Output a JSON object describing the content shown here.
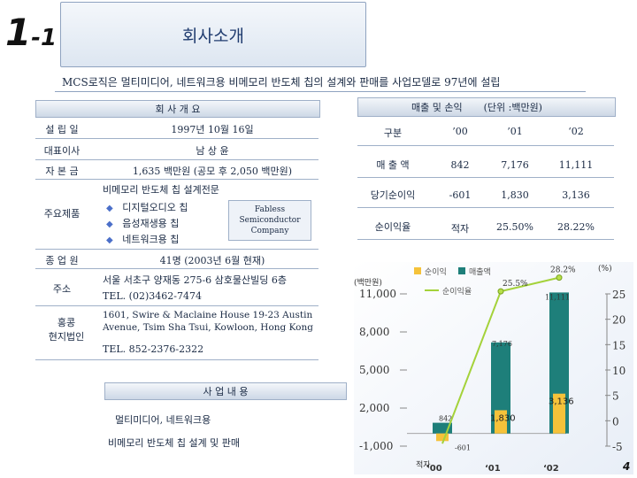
{
  "slide_number": {
    "main": "1",
    "sub": "-1"
  },
  "title": "회사소개",
  "subtitle": "MCS로직은 멀티미디어, 네트워크용 비메모리 반도체 칩의 설계와 판매를 사업모델로 97년에 설립",
  "overview": {
    "header": "회 사 개 요",
    "rows": [
      {
        "label": "설 립 일",
        "value": "1997년 10월 16일"
      },
      {
        "label": "대표이사",
        "value": "남 상 윤"
      },
      {
        "label": "자 본 금",
        "value": "1,635 백만원 (공모 후 2,050 백만원)"
      }
    ],
    "products": {
      "label": "주요제품",
      "heading": "비메모리 반도체 칩 설계전문",
      "items": [
        "디지털오디오 칩",
        "음성재생용 칩",
        "네트워크용 칩"
      ],
      "badge_lines": [
        "Fabless",
        "Semiconductor",
        "Company"
      ]
    },
    "employees": {
      "label": "종 업 원",
      "value": "41명 (2003년 6월 현재)"
    },
    "address": {
      "label": "주소",
      "line1": "서울 서초구 양재동 275-6 삼호물산빌딩 6층",
      "line2": "TEL. (02)3462-7474"
    },
    "hk": {
      "label_line1": "홍콩",
      "label_line2": "현지법인",
      "line1": "1601, Swire & Maclaine House 19-23 Austin",
      "line2": "Avenue, Tsim Sha Tsui, Kowloon, Hong Kong",
      "line3": "TEL. 852-2376-2322"
    }
  },
  "business": {
    "header": "사 업 내 용",
    "line1": "멀티미디어, 네트워크용",
    "line2": "비메모리 반도체 칩 설계 및 판매"
  },
  "finance": {
    "header": "매출 및 손익",
    "unit": "(단위 :백만원)",
    "columns": [
      "구분",
      "’00",
      "’01",
      "‘02"
    ],
    "rows": [
      {
        "label": "매 출 액",
        "values": [
          "842",
          "7,176",
          "11,111"
        ]
      },
      {
        "label": "당기순이익",
        "values": [
          "-601",
          "1,830",
          "3,136"
        ]
      },
      {
        "label": "순이익율",
        "values": [
          "적자",
          "25.50%",
          "28.22%"
        ]
      }
    ]
  },
  "chart_data": {
    "type": "bar",
    "categories": [
      "’00",
      "‘01",
      "‘02"
    ],
    "series": [
      {
        "name": "매출액",
        "values": [
          842,
          7176,
          11111
        ],
        "color": "#1e7f7a"
      },
      {
        "name": "순이익",
        "values": [
          -601,
          1830,
          3136
        ],
        "color": "#f5c23a"
      },
      {
        "name": "순이익율",
        "values": [
          null,
          25.5,
          28.2
        ],
        "color": "#a4d23a"
      }
    ],
    "left_axis": {
      "label": "(백만원)",
      "ticks": [
        "11,000",
        "8,000",
        "5,000",
        "2,000",
        "-1,000"
      ],
      "range": [
        -1000,
        11000
      ]
    },
    "right_axis": {
      "label": "(%)",
      "ticks": [
        "25",
        "20",
        "15",
        "10",
        "5",
        "0",
        "-5"
      ],
      "range": [
        -5,
        25
      ]
    },
    "legend": [
      "순이익",
      "매출액",
      "순이익율"
    ],
    "labels": {
      "sales": [
        "842",
        "7,176",
        "11,111"
      ],
      "profit": [
        "-601",
        "1,830",
        "3,136"
      ],
      "rate": [
        "25.5%",
        "28.2%"
      ],
      "loss": "적자"
    }
  },
  "page_number": "4"
}
